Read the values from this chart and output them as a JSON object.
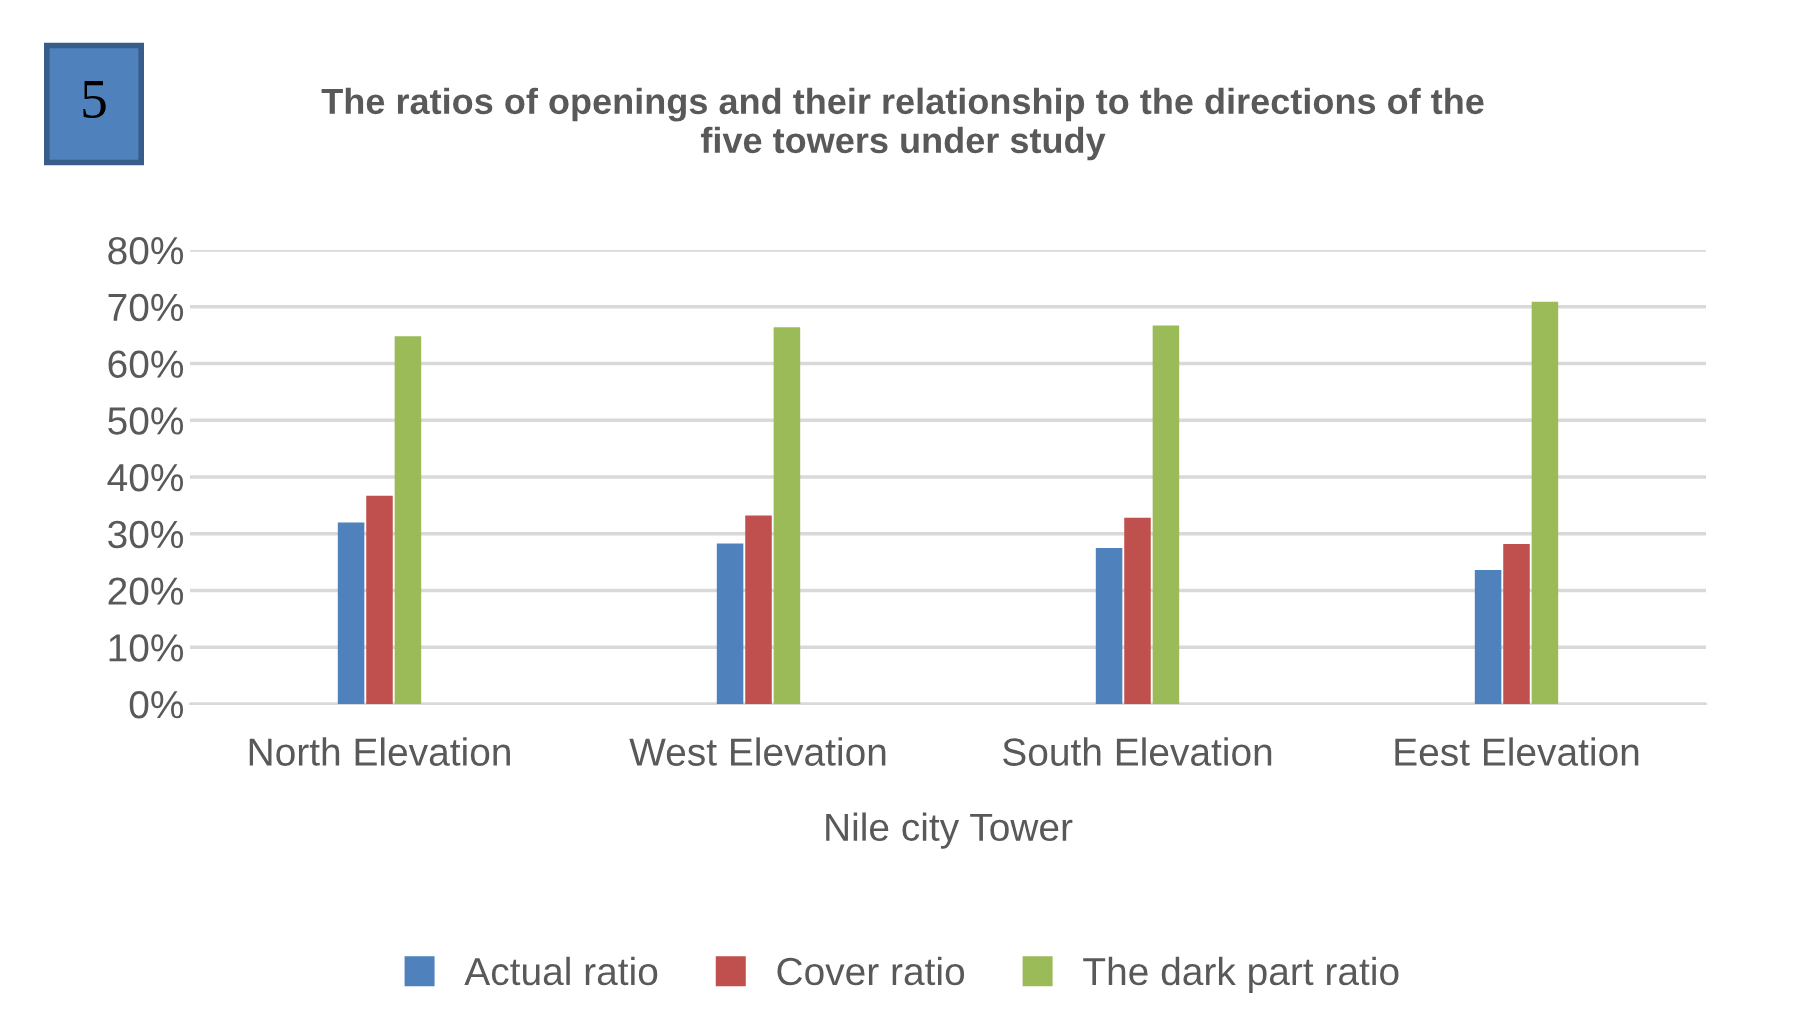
{
  "chart_data": {
    "type": "bar",
    "title": "The ratios of openings and their relationship to the directions of the\nfive towers under study",
    "categories": [
      "North Elevation",
      "West Elevation",
      "South Elevation",
      "Eest Elevation"
    ],
    "xlabel": "Nile city Tower",
    "series": [
      {
        "name": "Actual ratio",
        "color": "#4f81bd",
        "values": [
          32.0,
          28.3,
          27.5,
          23.6
        ]
      },
      {
        "name": "Cover ratio",
        "color": "#c0504d",
        "values": [
          36.7,
          33.2,
          32.8,
          28.2
        ]
      },
      {
        "name": "The dark part ratio",
        "color": "#9bbb59",
        "values": [
          64.8,
          66.4,
          66.7,
          70.9
        ]
      }
    ],
    "ylim": [
      0,
      80
    ],
    "yticks": [
      {
        "value": 0,
        "label": "0%"
      },
      {
        "value": 10,
        "label": "10%"
      },
      {
        "value": 20,
        "label": "20%"
      },
      {
        "value": 30,
        "label": "30%"
      },
      {
        "value": 40,
        "label": "40%"
      },
      {
        "value": 50,
        "label": "50%"
      },
      {
        "value": 60,
        "label": "60%"
      },
      {
        "value": 70,
        "label": "70%"
      },
      {
        "value": 80,
        "label": "80%"
      }
    ],
    "grid": "y",
    "legend": "bottom",
    "annotations": [
      "5"
    ]
  }
}
